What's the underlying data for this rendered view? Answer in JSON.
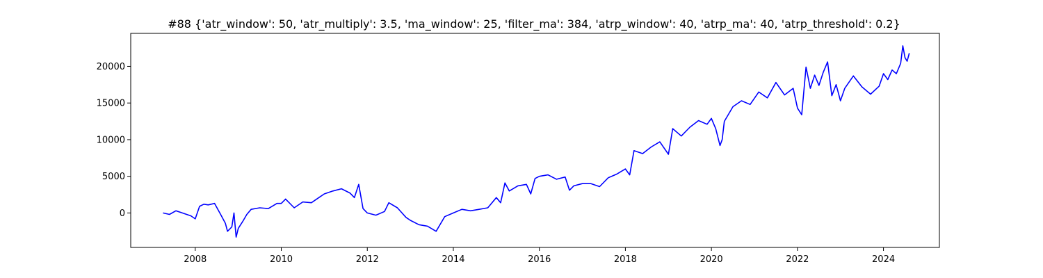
{
  "chart_data": {
    "type": "line",
    "title": "#88 {'atr_window': 50, 'atr_multiply': 3.5, 'ma_window': 25, 'filter_ma': 384, 'atrp_window': 40, 'atrp_ma': 40, 'atrp_threshold': 0.2}",
    "xlabel": "",
    "ylabel": "",
    "xlim": [
      2006.5,
      2025.3
    ],
    "ylim": [
      -4700,
      24500
    ],
    "x_ticks": [
      2008,
      2010,
      2012,
      2014,
      2016,
      2018,
      2020,
      2022,
      2024
    ],
    "y_ticks": [
      0,
      5000,
      10000,
      15000,
      20000
    ],
    "x_tick_labels": [
      "2008",
      "2010",
      "2012",
      "2014",
      "2016",
      "2018",
      "2020",
      "2022",
      "2024"
    ],
    "y_tick_labels": [
      "0",
      "5000",
      "10000",
      "15000",
      "20000"
    ],
    "grid": false,
    "line_color": "#0000ff",
    "series": [
      {
        "x": [
          2007.25,
          2007.4,
          2007.55,
          2007.7,
          2007.9,
          2008.0,
          2008.1,
          2008.2,
          2008.3,
          2008.45,
          2008.6,
          2008.7,
          2008.75,
          2008.85,
          2008.9,
          2008.95,
          2009.0,
          2009.1,
          2009.2,
          2009.3,
          2009.5,
          2009.7,
          2009.9,
          2010.0,
          2010.1,
          2010.3,
          2010.5,
          2010.7,
          2010.9,
          2011.0,
          2011.2,
          2011.4,
          2011.6,
          2011.7,
          2011.8,
          2011.9,
          2012.0,
          2012.2,
          2012.4,
          2012.5,
          2012.7,
          2012.9,
          2013.0,
          2013.2,
          2013.4,
          2013.6,
          2013.8,
          2014.0,
          2014.2,
          2014.4,
          2014.6,
          2014.8,
          2015.0,
          2015.1,
          2015.2,
          2015.3,
          2015.5,
          2015.7,
          2015.8,
          2015.9,
          2016.0,
          2016.2,
          2016.4,
          2016.6,
          2016.7,
          2016.8,
          2017.0,
          2017.2,
          2017.4,
          2017.6,
          2017.8,
          2018.0,
          2018.1,
          2018.2,
          2018.4,
          2018.6,
          2018.8,
          2019.0,
          2019.1,
          2019.3,
          2019.5,
          2019.7,
          2019.9,
          2020.0,
          2020.1,
          2020.2,
          2020.25,
          2020.3,
          2020.5,
          2020.7,
          2020.9,
          2021.1,
          2021.3,
          2021.5,
          2021.7,
          2021.9,
          2022.0,
          2022.1,
          2022.2,
          2022.3,
          2022.4,
          2022.5,
          2022.6,
          2022.7,
          2022.8,
          2022.9,
          2023.0,
          2023.1,
          2023.3,
          2023.5,
          2023.7,
          2023.9,
          2024.0,
          2024.1,
          2024.2,
          2024.3,
          2024.4,
          2024.45,
          2024.5,
          2024.55,
          2024.6
        ],
        "y": [
          0,
          -200,
          300,
          0,
          -400,
          -800,
          900,
          1200,
          1100,
          1300,
          -300,
          -1400,
          -2500,
          -1900,
          0,
          -3300,
          -2100,
          -1200,
          -200,
          500,
          700,
          600,
          1300,
          1300,
          1900,
          700,
          1500,
          1400,
          2200,
          2600,
          3000,
          3300,
          2700,
          2100,
          3900,
          600,
          0,
          -300,
          200,
          1400,
          700,
          -600,
          -1000,
          -1600,
          -1800,
          -2500,
          -500,
          0,
          500,
          300,
          500,
          700,
          2100,
          1400,
          4100,
          3000,
          3700,
          3900,
          2600,
          4700,
          5000,
          5200,
          4600,
          4900,
          3100,
          3700,
          4000,
          4000,
          3600,
          4800,
          5300,
          6000,
          5200,
          8500,
          8100,
          9000,
          9700,
          8000,
          11500,
          10500,
          11700,
          12600,
          12100,
          12900,
          11500,
          9200,
          10000,
          12500,
          14500,
          15300,
          14800,
          16500,
          15700,
          17800,
          16100,
          17000,
          14300,
          13400,
          19900,
          17000,
          18800,
          17400,
          19200,
          20600,
          16000,
          17500,
          15300,
          17000,
          18700,
          17200,
          16200,
          17300,
          19000,
          18200,
          19500,
          19000,
          20400,
          22800,
          21200,
          20700,
          21800
        ]
      }
    ]
  }
}
